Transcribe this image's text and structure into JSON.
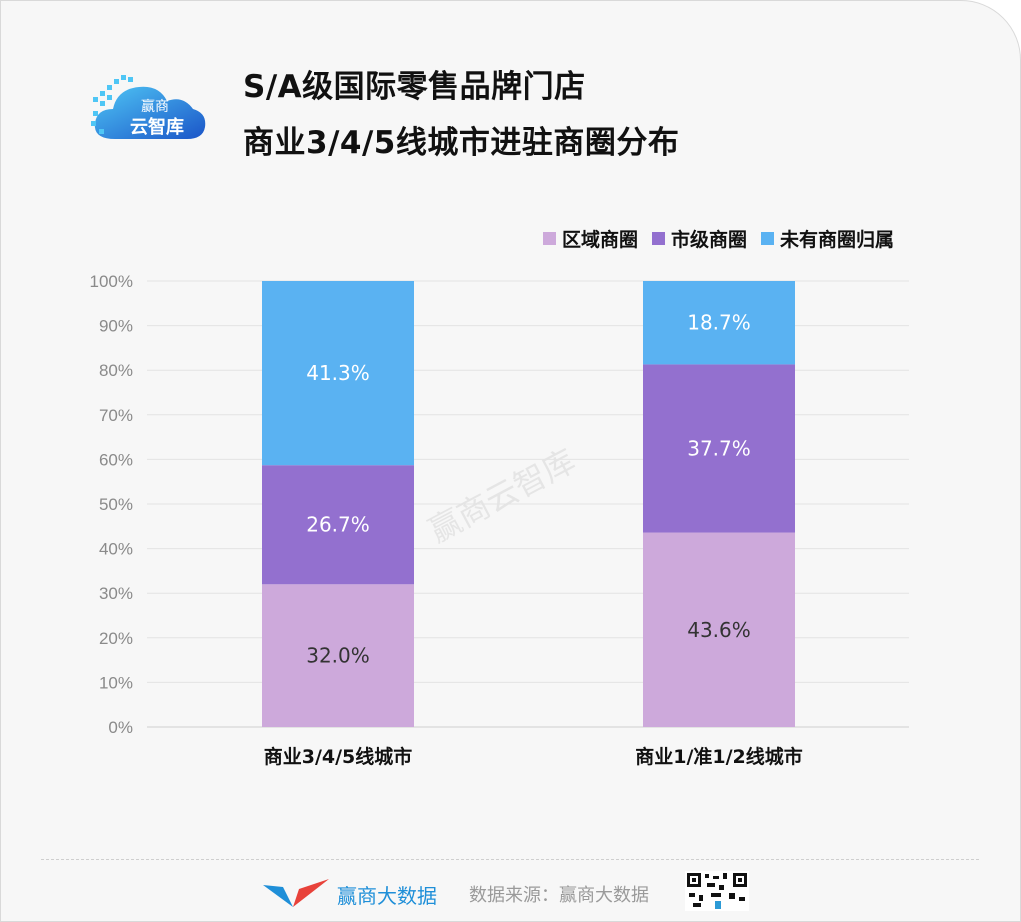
{
  "title_lines": [
    "S/A级国际零售品牌门店",
    "商业3/4/5线城市进驻商圈分布"
  ],
  "logo": {
    "line1": "赢商",
    "line2": "云智库",
    "icon": "cloud-logo-icon"
  },
  "watermark": "赢商云智库",
  "footer": {
    "brand": "赢商大数据",
    "source": "数据来源：赢商大数据",
    "qr_icon": "qr-code-icon",
    "brand_icon": "v-bird-logo-icon"
  },
  "colors": {
    "regional": "#CDA9DB",
    "city": "#9370CF",
    "none": "#5AB2F2"
  },
  "chart_data": {
    "type": "bar",
    "stacked": true,
    "categories": [
      "商业3/4/5线城市",
      "商业1/准1/2线城市"
    ],
    "series": [
      {
        "name": "区域商圈",
        "values": [
          32.0,
          43.6
        ],
        "labels": [
          "32.0%",
          "43.6%"
        ]
      },
      {
        "name": "市级商圈",
        "values": [
          26.7,
          37.7
        ],
        "labels": [
          "26.7%",
          "37.7%"
        ]
      },
      {
        "name": "未有商圈归属",
        "values": [
          41.3,
          18.7
        ],
        "labels": [
          "41.3%",
          "18.7%"
        ]
      }
    ],
    "yticks": [
      "0%",
      "10%",
      "20%",
      "30%",
      "40%",
      "50%",
      "60%",
      "70%",
      "80%",
      "90%",
      "100%"
    ],
    "ylim": [
      0,
      100
    ],
    "grid": true,
    "legend": "top-right"
  }
}
